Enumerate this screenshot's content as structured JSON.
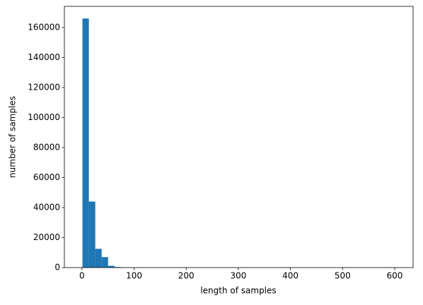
{
  "chart_data": {
    "type": "histogram",
    "xlabel": "length of samples",
    "ylabel": "number of samples",
    "bins": [
      1,
      13.28,
      25.56,
      37.84,
      50.12,
      62.4,
      74.68,
      86.96,
      99.24,
      111.52,
      123.8,
      136.08,
      148.36,
      160.64,
      172.92,
      185.2,
      197.48,
      209.76,
      222.04,
      234.32,
      246.6,
      258.88,
      271.16,
      283.44,
      295.72,
      308,
      320.28,
      332.56,
      344.84,
      357.12,
      369.4,
      381.68,
      393.96,
      406.24,
      418.52,
      430.8,
      443.08,
      455.36,
      467.64,
      479.92,
      492.2,
      504.48,
      516.76,
      529.04,
      541.32,
      553.6,
      565.88,
      578.16,
      590.44,
      602.72,
      615
    ],
    "values": [
      166000,
      44000,
      12500,
      7000,
      1200,
      400,
      150,
      60,
      30,
      15,
      8,
      5,
      3,
      2,
      2,
      1,
      1,
      1,
      0,
      1,
      0,
      0,
      1,
      0,
      0,
      0,
      0,
      0,
      0,
      0,
      0,
      0,
      0,
      0,
      0,
      0,
      0,
      0,
      0,
      0,
      0,
      0,
      0,
      0,
      0,
      0,
      0,
      0,
      0,
      1
    ],
    "color": "#1f77b4",
    "xlim": [
      -33.7,
      635.3
    ],
    "xticks": [
      0,
      100,
      200,
      300,
      400,
      500,
      600
    ],
    "ylim": [
      0,
      174100
    ],
    "yticks": [
      0,
      20000,
      40000,
      60000,
      80000,
      100000,
      120000,
      140000,
      160000
    ],
    "grid": false
  }
}
